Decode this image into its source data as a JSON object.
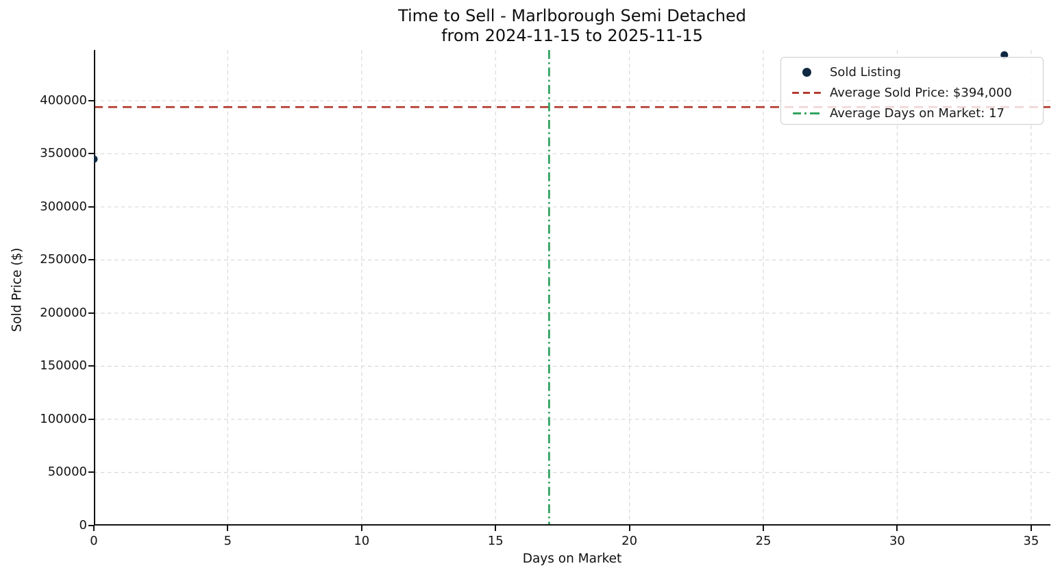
{
  "figure": {
    "title_line1": "Time to Sell - Marlborough Semi Detached",
    "title_line2": "from 2024-11-15 to 2025-11-15",
    "xlabel": "Days on Market",
    "ylabel": "Sold Price ($)"
  },
  "legend": {
    "position": "upper right",
    "items": [
      {
        "label": "Sold Listing",
        "marker": "dot"
      },
      {
        "label": "Average Sold Price: $394,000",
        "marker": "dashed-line"
      },
      {
        "label": "Average Days on Market: 17",
        "marker": "dashdot-line"
      }
    ]
  },
  "chart_data": {
    "type": "scatter",
    "title": "Time to Sell - Marlborough Semi Detached\nfrom 2024-11-15 to 2025-11-15",
    "xlabel": "Days on Market",
    "ylabel": "Sold Price ($)",
    "series": [
      {
        "name": "Sold Listing",
        "points": [
          {
            "x": 0,
            "y": 345000
          },
          {
            "x": 34,
            "y": 443000
          }
        ]
      }
    ],
    "reference_lines": [
      {
        "name": "Average Sold Price",
        "orientation": "horizontal",
        "value": 394000,
        "style": "dashed",
        "color": "#b23b30"
      },
      {
        "name": "Average Days on Market",
        "orientation": "vertical",
        "value": 17,
        "style": "dashdot",
        "color": "#32a360"
      }
    ],
    "xlim": [
      0,
      35.72
    ],
    "ylim": [
      0,
      447700
    ],
    "xticks": [
      0,
      5,
      10,
      15,
      20,
      25,
      30,
      35
    ],
    "yticks": [
      0,
      50000,
      100000,
      150000,
      200000,
      250000,
      300000,
      350000,
      400000
    ],
    "grid": true,
    "legend_position": "upper right",
    "colors": {
      "point": "#102840",
      "avg_price_line": "#b23b30",
      "avg_days_line": "#32a360",
      "grid": "#d9d9d9",
      "axis": "#111111",
      "text": "#141414"
    }
  }
}
